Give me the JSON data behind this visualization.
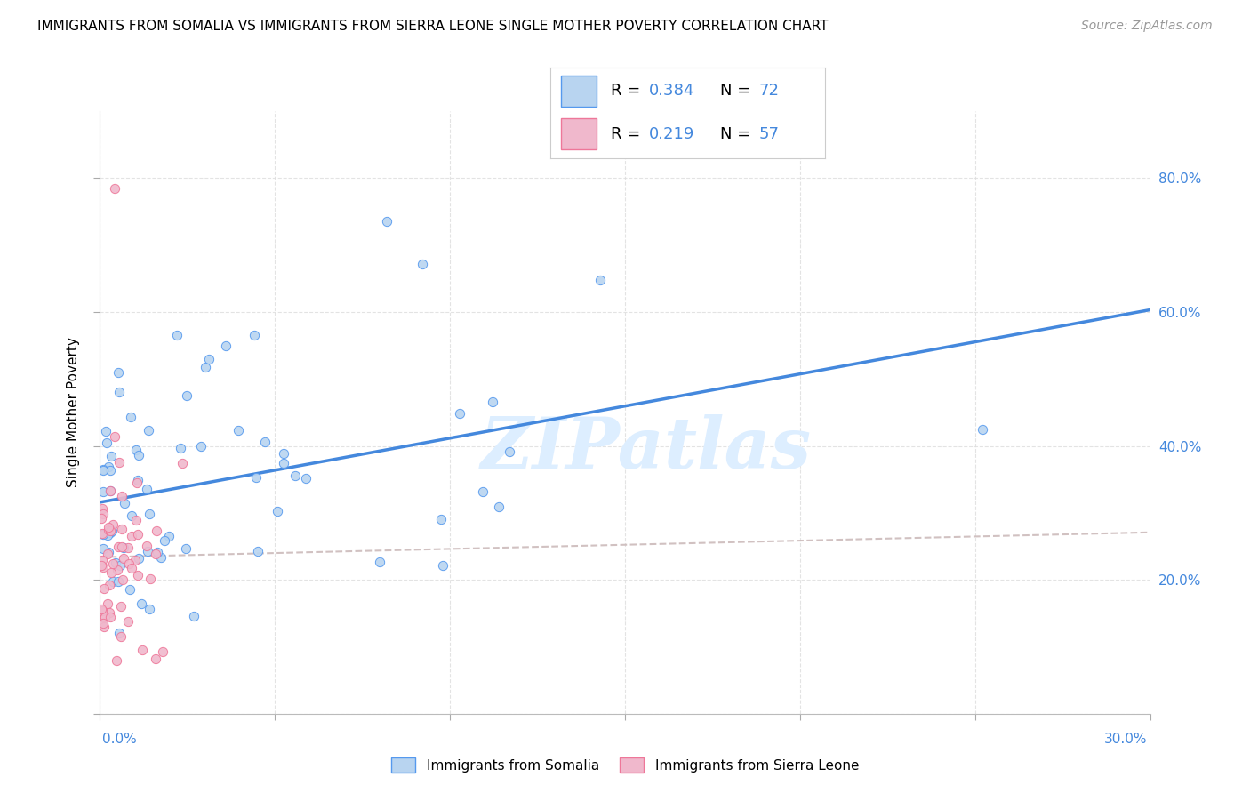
{
  "title": "IMMIGRANTS FROM SOMALIA VS IMMIGRANTS FROM SIERRA LEONE SINGLE MOTHER POVERTY CORRELATION CHART",
  "source": "Source: ZipAtlas.com",
  "ylabel": "Single Mother Poverty",
  "ylabel_right_ticks": [
    "20.0%",
    "40.0%",
    "60.0%",
    "80.0%"
  ],
  "ylabel_right_vals": [
    0.2,
    0.4,
    0.6,
    0.8
  ],
  "xlim": [
    0.0,
    0.3
  ],
  "ylim": [
    0.0,
    0.9
  ],
  "color_somalia": "#b8d4f0",
  "color_sierraleone": "#f0b8cc",
  "color_somalia_edge": "#5599ee",
  "color_sierraleone_edge": "#ee7799",
  "color_somalia_line": "#4488dd",
  "color_sierraleone_line": "#ccaaaa",
  "watermark_color": "#ddeeff",
  "legend_label_somalia": "Immigrants from Somalia",
  "legend_label_sierraleone": "Immigrants from Sierra Leone",
  "grid_color": "#dddddd",
  "title_fontsize": 11,
  "source_fontsize": 10
}
